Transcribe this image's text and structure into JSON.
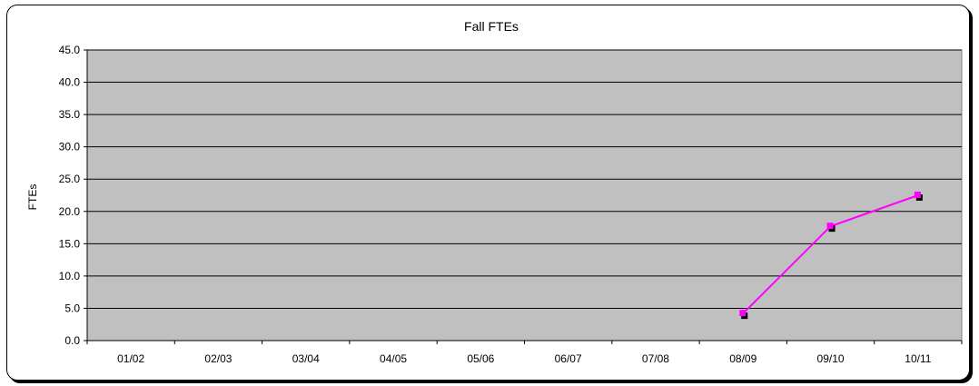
{
  "chart_data": {
    "type": "line",
    "title": "Fall FTEs",
    "xlabel": "",
    "ylabel": "FTEs",
    "categories": [
      "01/02",
      "02/03",
      "03/04",
      "04/05",
      "05/06",
      "06/07",
      "07/08",
      "08/09",
      "09/10",
      "10/11"
    ],
    "y_ticks": [
      "0.0",
      "5.0",
      "10.0",
      "15.0",
      "20.0",
      "25.0",
      "30.0",
      "35.0",
      "40.0",
      "45.0"
    ],
    "ylim": [
      0,
      45
    ],
    "grid": true,
    "legend": "none",
    "plot_background": "#c0c0c0",
    "series": [
      {
        "color": "#ff00ff",
        "marker_shadow_color": "#000000",
        "values": [
          null,
          null,
          null,
          null,
          null,
          null,
          null,
          4.2,
          17.7,
          22.5
        ]
      }
    ]
  }
}
